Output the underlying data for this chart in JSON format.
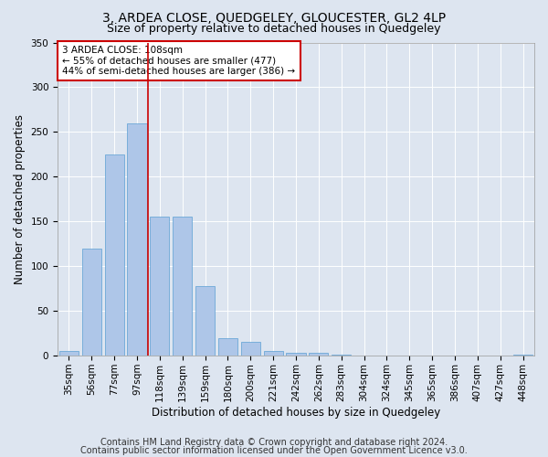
{
  "title": "3, ARDEA CLOSE, QUEDGELEY, GLOUCESTER, GL2 4LP",
  "subtitle": "Size of property relative to detached houses in Quedgeley",
  "xlabel": "Distribution of detached houses by size in Quedgeley",
  "ylabel": "Number of detached properties",
  "footer1": "Contains HM Land Registry data © Crown copyright and database right 2024.",
  "footer2": "Contains public sector information licensed under the Open Government Licence v3.0.",
  "bar_labels": [
    "35sqm",
    "56sqm",
    "77sqm",
    "97sqm",
    "118sqm",
    "139sqm",
    "159sqm",
    "180sqm",
    "200sqm",
    "221sqm",
    "242sqm",
    "262sqm",
    "283sqm",
    "304sqm",
    "324sqm",
    "345sqm",
    "365sqm",
    "386sqm",
    "407sqm",
    "427sqm",
    "448sqm"
  ],
  "bar_values": [
    5,
    120,
    225,
    260,
    155,
    155,
    78,
    20,
    15,
    5,
    3,
    3,
    1,
    0,
    0,
    0,
    0,
    0,
    0,
    0,
    1
  ],
  "bar_color": "#aec6e8",
  "bar_edge_color": "#5a9fd4",
  "vline_x": 3.5,
  "vline_color": "#cc0000",
  "annotation_text": "3 ARDEA CLOSE: 108sqm\n← 55% of detached houses are smaller (477)\n44% of semi-detached houses are larger (386) →",
  "annotation_box_color": "#ffffff",
  "annotation_box_edge": "#cc0000",
  "ylim": [
    0,
    350
  ],
  "yticks": [
    0,
    50,
    100,
    150,
    200,
    250,
    300,
    350
  ],
  "bg_color": "#dde5f0",
  "plot_bg_color": "#dde5f0",
  "grid_color": "#ffffff",
  "title_fontsize": 10,
  "subtitle_fontsize": 9,
  "axis_label_fontsize": 8.5,
  "tick_fontsize": 7.5,
  "footer_fontsize": 7,
  "annotation_fontsize": 7.5
}
